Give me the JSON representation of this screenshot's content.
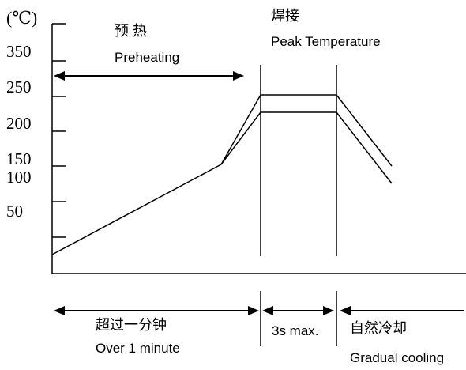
{
  "chart_data": {
    "type": "line",
    "y_unit": "(℃)",
    "y_ticks": [
      "350",
      "250",
      "200",
      "150",
      "100",
      "50"
    ],
    "phases": {
      "preheating": {
        "label_cn": "预 热",
        "label_en": "Preheating",
        "duration_cn": "超过一分钟",
        "duration_en": "Over 1 minute"
      },
      "peak": {
        "label_cn": "焊接",
        "label_en": "Peak Temperature",
        "duration": "3s max."
      },
      "cooling": {
        "label_cn": "自然冷却",
        "label_en": "Gradual cooling"
      }
    },
    "grid": false,
    "legend": "none"
  },
  "colors": {
    "line": "#000000",
    "background": "#ffffff"
  }
}
